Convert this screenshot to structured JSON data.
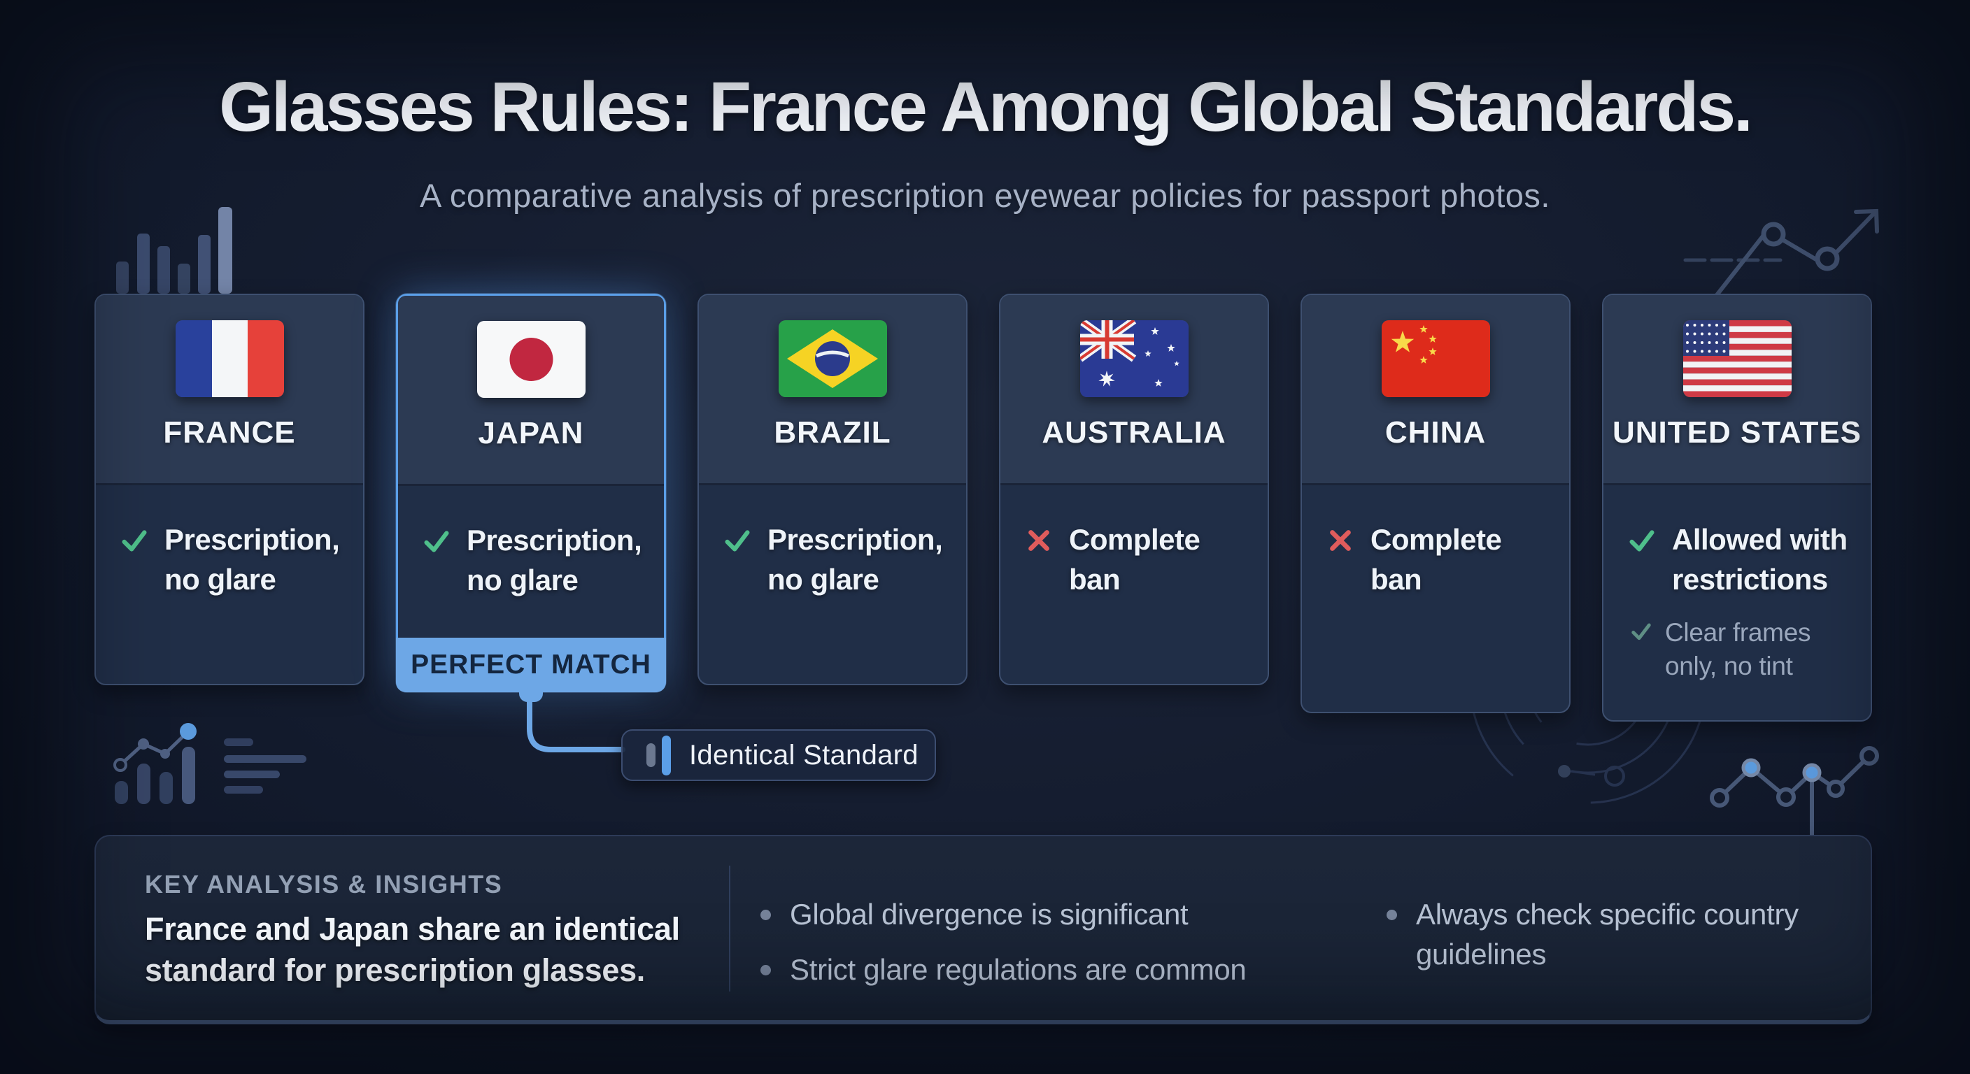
{
  "page": {
    "title": "Glasses Rules: France Among Global Standards.",
    "subtitle": "A comparative analysis of prescription eyewear policies for passport photos."
  },
  "cards": [
    {
      "country": "FRANCE",
      "flag": "france",
      "icon": "check",
      "rule": "Prescription, no glare"
    },
    {
      "country": "JAPAN",
      "flag": "japan",
      "icon": "check",
      "rule": "Prescription, no glare",
      "badge": "PERFECT MATCH",
      "highlighted": true
    },
    {
      "country": "BRAZIL",
      "flag": "brazil",
      "icon": "check",
      "rule": "Prescription, no glare"
    },
    {
      "country": "AUSTRALIA",
      "flag": "australia",
      "icon": "cross",
      "rule": "Complete ban"
    },
    {
      "country": "CHINA",
      "flag": "china",
      "icon": "cross",
      "rule": "Complete ban"
    },
    {
      "country": "UNITED STATES",
      "flag": "usa",
      "icon": "check",
      "rule": "Allowed with restrictions",
      "subrule": {
        "icon": "check",
        "text": "Clear frames only, no tint"
      }
    }
  ],
  "connector": {
    "label": "Identical Standard"
  },
  "insights": {
    "heading": "KEY ANALYSIS & INSIGHTS",
    "summary": "France and Japan share an identical standard for prescription glasses.",
    "bullets": [
      "Global divergence is significant",
      "Strict glare regulations are common"
    ],
    "bullets_right": [
      "Always check specific country guidelines"
    ]
  },
  "colors": {
    "accent_blue": "#5b9fe8",
    "badge_bg": "#6da7e6",
    "check_green": "#4fbf8b",
    "cross_red": "#e05c5c",
    "node_blue": "#64a8f0",
    "background": "#141b2c",
    "card_header": "#2c3a53",
    "card_body": "#202e47",
    "panel_bg": "#1a2539"
  }
}
